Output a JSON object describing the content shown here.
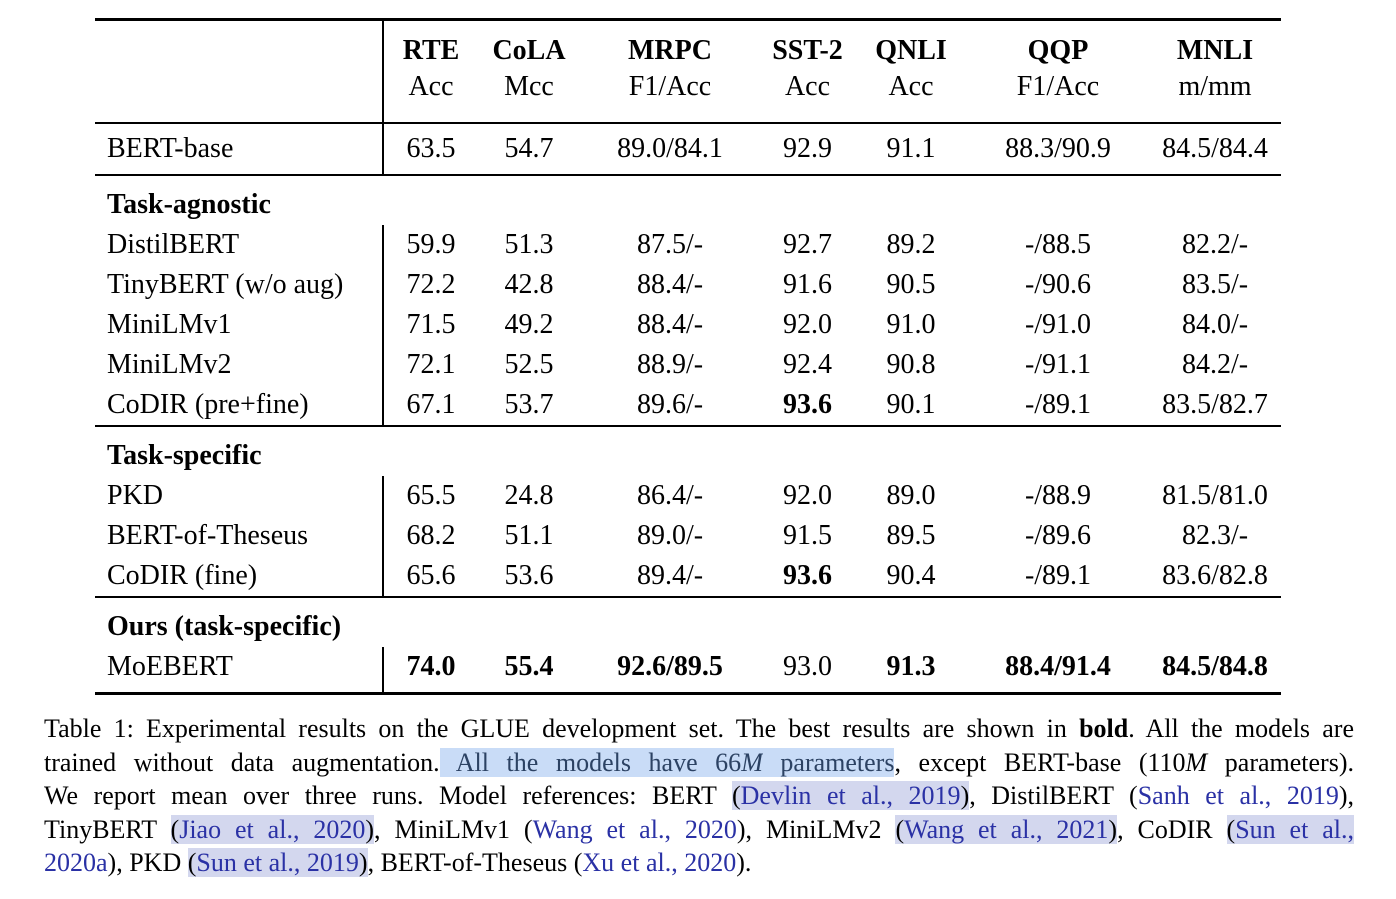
{
  "colors": {
    "link_blue": "#2a31a5",
    "statement_ink": "#2c4263",
    "highlight_blue": "#c9dcf7",
    "highlight_lavender": "#d3d7ee",
    "rule_black": "#000000"
  },
  "table": {
    "columns": [
      {
        "name": "RTE",
        "metric": "Acc"
      },
      {
        "name": "CoLA",
        "metric": "Mcc"
      },
      {
        "name": "MRPC",
        "metric": "F1/Acc"
      },
      {
        "name": "SST-2",
        "metric": "Acc"
      },
      {
        "name": "QNLI",
        "metric": "Acc"
      },
      {
        "name": "QQP",
        "metric": "F1/Acc"
      },
      {
        "name": "MNLI",
        "metric": "m/mm"
      }
    ],
    "sections": [
      {
        "title": "",
        "rows": [
          {
            "model": "BERT-base",
            "values": [
              "63.5",
              "54.7",
              "89.0/84.1",
              "92.9",
              "91.1",
              "88.3/90.9",
              "84.5/84.4"
            ],
            "bold": []
          }
        ]
      },
      {
        "title": "Task-agnostic",
        "rows": [
          {
            "model": "DistilBERT",
            "values": [
              "59.9",
              "51.3",
              "87.5/-",
              "92.7",
              "89.2",
              "-/88.5",
              "82.2/-"
            ],
            "bold": []
          },
          {
            "model": "TinyBERT (w/o aug)",
            "values": [
              "72.2",
              "42.8",
              "88.4/-",
              "91.6",
              "90.5",
              "-/90.6",
              "83.5/-"
            ],
            "bold": []
          },
          {
            "model": "MiniLMv1",
            "values": [
              "71.5",
              "49.2",
              "88.4/-",
              "92.0",
              "91.0",
              "-/91.0",
              "84.0/-"
            ],
            "bold": []
          },
          {
            "model": "MiniLMv2",
            "values": [
              "72.1",
              "52.5",
              "88.9/-",
              "92.4",
              "90.8",
              "-/91.1",
              "84.2/-"
            ],
            "bold": []
          },
          {
            "model": "CoDIR (pre+fine)",
            "values": [
              "67.1",
              "53.7",
              "89.6/-",
              "93.6",
              "90.1",
              "-/89.1",
              "83.5/82.7"
            ],
            "bold": [
              3
            ]
          }
        ]
      },
      {
        "title": "Task-specific",
        "rows": [
          {
            "model": "PKD",
            "values": [
              "65.5",
              "24.8",
              "86.4/-",
              "92.0",
              "89.0",
              "-/88.9",
              "81.5/81.0"
            ],
            "bold": []
          },
          {
            "model": "BERT-of-Theseus",
            "values": [
              "68.2",
              "51.1",
              "89.0/-",
              "91.5",
              "89.5",
              "-/89.6",
              "82.3/-"
            ],
            "bold": []
          },
          {
            "model": "CoDIR (fine)",
            "values": [
              "65.6",
              "53.6",
              "89.4/-",
              "93.6",
              "90.4",
              "-/89.1",
              "83.6/82.8"
            ],
            "bold": [
              3
            ]
          }
        ]
      },
      {
        "title": "Ours (task-specific)",
        "rows": [
          {
            "model": "MoEBERT",
            "values": [
              "74.0",
              "55.4",
              "92.6/89.5",
              "93.0",
              "91.3",
              "88.4/91.4",
              "84.5/84.8"
            ],
            "bold": [
              0,
              1,
              2,
              4,
              5,
              6
            ]
          }
        ]
      }
    ]
  },
  "caption": {
    "lines": [
      [
        {
          "t": "Table 1: Experimental results on the GLUE development set. The best results are shown in ",
          "s": "p"
        },
        {
          "t": "bold",
          "s": "b"
        },
        {
          "t": ". All the models are",
          "s": "p"
        }
      ],
      [
        {
          "t": "trained without data augmentation.",
          "s": "p"
        },
        {
          "t": " All the models have 66",
          "s": "s"
        },
        {
          "t": "M",
          "s": "sm"
        },
        {
          "t": " parameters",
          "s": "s"
        },
        {
          "t": ", except BERT-base (110",
          "s": "p"
        },
        {
          "t": "M",
          "s": "m"
        },
        {
          "t": " parameters).",
          "s": "p"
        }
      ],
      [
        {
          "t": "We report mean over three runs. Model references: BERT ",
          "s": "p"
        },
        {
          "t": "(",
          "s": "ph"
        },
        {
          "t": "Devlin et al., 2019",
          "s": "ch"
        },
        {
          "t": ")",
          "s": "ph"
        },
        {
          "t": ", DistilBERT (",
          "s": "p"
        },
        {
          "t": "Sanh et al., 2019",
          "s": "c"
        },
        {
          "t": "),",
          "s": "p"
        }
      ],
      [
        {
          "t": "TinyBERT ",
          "s": "p"
        },
        {
          "t": "(",
          "s": "ph"
        },
        {
          "t": "Jiao et al., 2020",
          "s": "ch"
        },
        {
          "t": ")",
          "s": "ph"
        },
        {
          "t": ", MiniLMv1 (",
          "s": "p"
        },
        {
          "t": "Wang et al., 2020",
          "s": "c"
        },
        {
          "t": "), MiniLMv2 ",
          "s": "p"
        },
        {
          "t": "(",
          "s": "ph"
        },
        {
          "t": "Wang et al., 2021",
          "s": "ch"
        },
        {
          "t": ")",
          "s": "ph"
        },
        {
          "t": ", CoDIR ",
          "s": "p"
        },
        {
          "t": "(",
          "s": "ph"
        },
        {
          "t": "Sun et al.,",
          "s": "ch"
        }
      ],
      [
        {
          "t": "2020a",
          "s": "c"
        },
        {
          "t": "), PKD ",
          "s": "p"
        },
        {
          "t": "(",
          "s": "ph"
        },
        {
          "t": "Sun et al., 2019",
          "s": "ch"
        },
        {
          "t": ")",
          "s": "ph"
        },
        {
          "t": ", BERT-of-Theseus (",
          "s": "p"
        },
        {
          "t": "Xu et al., 2020",
          "s": "c"
        },
        {
          "t": ").",
          "s": "p"
        }
      ]
    ]
  }
}
